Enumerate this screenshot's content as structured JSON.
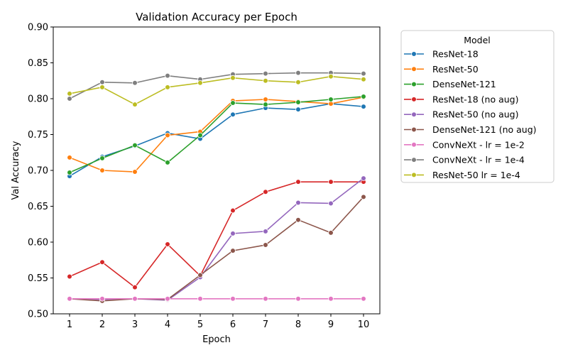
{
  "chart_data": {
    "type": "line",
    "title": "Validation Accuracy per Epoch",
    "xlabel": "Epoch",
    "ylabel": "Val Accuracy",
    "x": [
      1,
      2,
      3,
      4,
      5,
      6,
      7,
      8,
      9,
      10
    ],
    "ylim": [
      0.5,
      0.9
    ],
    "yticks": [
      "0.50",
      "0.55",
      "0.60",
      "0.65",
      "0.70",
      "0.75",
      "0.80",
      "0.85",
      "0.90"
    ],
    "legend_title": "Model",
    "legend_position": "outside-right",
    "grid": false,
    "series": [
      {
        "name": "ResNet-18",
        "color": "#1f77b4",
        "values": [
          0.692,
          0.719,
          0.734,
          0.752,
          0.744,
          0.778,
          0.787,
          0.785,
          0.793,
          0.789
        ]
      },
      {
        "name": "ResNet-50",
        "color": "#ff7f0e",
        "values": [
          0.718,
          0.7,
          0.698,
          0.749,
          0.754,
          0.797,
          0.799,
          0.796,
          0.793,
          0.802
        ]
      },
      {
        "name": "DenseNet-121",
        "color": "#2ca02c",
        "values": [
          0.697,
          0.717,
          0.735,
          0.711,
          0.749,
          0.794,
          0.792,
          0.795,
          0.799,
          0.803
        ]
      },
      {
        "name": "ResNet-18 (no aug)",
        "color": "#d62728",
        "values": [
          0.552,
          0.572,
          0.537,
          0.597,
          0.553,
          0.644,
          0.67,
          0.684,
          0.684,
          0.684
        ]
      },
      {
        "name": "ResNet-50 (no aug)",
        "color": "#9467bd",
        "values": [
          0.521,
          0.52,
          0.521,
          0.519,
          0.551,
          0.612,
          0.615,
          0.655,
          0.654,
          0.689
        ]
      },
      {
        "name": "DenseNet-121 (no aug)",
        "color": "#8c564b",
        "values": [
          0.521,
          0.518,
          0.521,
          0.52,
          0.554,
          0.588,
          0.596,
          0.631,
          0.613,
          0.663
        ]
      },
      {
        "name": "ConvNeXt - lr = 1e-2",
        "color": "#e377c2",
        "values": [
          0.521,
          0.521,
          0.521,
          0.521,
          0.521,
          0.521,
          0.521,
          0.521,
          0.521,
          0.521
        ]
      },
      {
        "name": "ConvNeXt - lr = 1e-4",
        "color": "#7f7f7f",
        "values": [
          0.8,
          0.823,
          0.822,
          0.832,
          0.827,
          0.834,
          0.835,
          0.836,
          0.836,
          0.835
        ]
      },
      {
        "name": "ResNet-50 lr = 1e-4",
        "color": "#bcbd22",
        "values": [
          0.807,
          0.816,
          0.792,
          0.816,
          0.822,
          0.829,
          0.825,
          0.823,
          0.831,
          0.827
        ]
      }
    ]
  }
}
